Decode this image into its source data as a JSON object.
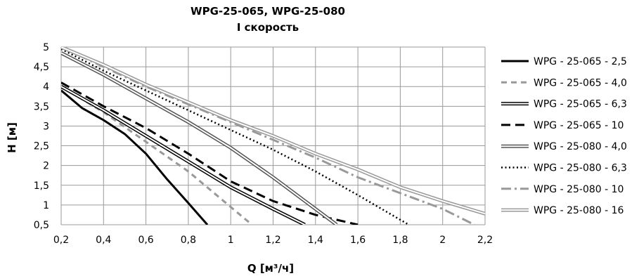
{
  "chart_data": {
    "type": "line",
    "title": "WPG-25-065, WPG-25-080",
    "subtitle": "I скорость",
    "xlabel": "Q [м³/ч]",
    "ylabel": "H [м]",
    "xlim": [
      0.2,
      2.2
    ],
    "ylim": [
      0.5,
      5
    ],
    "x_ticks": [
      "0,2",
      "0,4",
      "0,6",
      "0,8",
      "1",
      "1,2",
      "1,4",
      "1,6",
      "1,8",
      "2",
      "2,2"
    ],
    "y_ticks": [
      "0,5",
      "1",
      "1,5",
      "2",
      "2,5",
      "3",
      "3,5",
      "4",
      "4,5",
      "5"
    ],
    "grid": true,
    "legend_position": "right",
    "series": [
      {
        "name": "WPG - 25-065 - 2,5",
        "style": "solid",
        "color": "#000000",
        "points": [
          [
            0.2,
            3.9
          ],
          [
            0.3,
            3.45
          ],
          [
            0.4,
            3.15
          ],
          [
            0.5,
            2.8
          ],
          [
            0.6,
            2.3
          ],
          [
            0.7,
            1.65
          ],
          [
            0.8,
            1.05
          ],
          [
            0.89,
            0.5
          ]
        ]
      },
      {
        "name": "WPG - 25-065 - 4,0",
        "style": "dashed",
        "color": "#999999",
        "points": [
          [
            0.2,
            4.0
          ],
          [
            0.4,
            3.35
          ],
          [
            0.6,
            2.6
          ],
          [
            0.8,
            1.85
          ],
          [
            0.9,
            1.4
          ],
          [
            1.0,
            0.95
          ],
          [
            1.1,
            0.5
          ]
        ]
      },
      {
        "name": "WPG - 25-065 - 6,3",
        "style": "double",
        "color": "#000000",
        "points": [
          [
            0.2,
            4.0
          ],
          [
            0.4,
            3.4
          ],
          [
            0.6,
            2.75
          ],
          [
            0.8,
            2.1
          ],
          [
            1.0,
            1.45
          ],
          [
            1.2,
            0.9
          ],
          [
            1.35,
            0.5
          ]
        ]
      },
      {
        "name": "WPG - 25-065 - 10",
        "style": "longdash",
        "color": "#000000",
        "points": [
          [
            0.2,
            4.1
          ],
          [
            0.4,
            3.5
          ],
          [
            0.6,
            2.95
          ],
          [
            0.8,
            2.3
          ],
          [
            1.0,
            1.6
          ],
          [
            1.2,
            1.1
          ],
          [
            1.4,
            0.75
          ],
          [
            1.6,
            0.5
          ]
        ]
      },
      {
        "name": "WPG - 25-080 - 4,0",
        "style": "double",
        "color": "#555555",
        "points": [
          [
            0.2,
            4.85
          ],
          [
            0.4,
            4.3
          ],
          [
            0.6,
            3.7
          ],
          [
            0.8,
            3.1
          ],
          [
            1.0,
            2.45
          ],
          [
            1.2,
            1.7
          ],
          [
            1.4,
            0.9
          ],
          [
            1.5,
            0.5
          ]
        ]
      },
      {
        "name": "WPG - 25-080 - 6,3",
        "style": "dotted",
        "color": "#000000",
        "points": [
          [
            0.2,
            4.95
          ],
          [
            0.4,
            4.4
          ],
          [
            0.6,
            3.9
          ],
          [
            0.8,
            3.4
          ],
          [
            1.0,
            2.9
          ],
          [
            1.2,
            2.4
          ],
          [
            1.4,
            1.85
          ],
          [
            1.6,
            1.25
          ],
          [
            1.84,
            0.5
          ]
        ]
      },
      {
        "name": "WPG - 25-080 - 10",
        "style": "dashdot",
        "color": "#999999",
        "points": [
          [
            0.2,
            5.0
          ],
          [
            0.4,
            4.5
          ],
          [
            0.6,
            4.0
          ],
          [
            0.8,
            3.55
          ],
          [
            1.0,
            3.1
          ],
          [
            1.2,
            2.65
          ],
          [
            1.4,
            2.2
          ],
          [
            1.6,
            1.7
          ],
          [
            1.8,
            1.3
          ],
          [
            2.0,
            0.9
          ],
          [
            2.15,
            0.5
          ]
        ]
      },
      {
        "name": "WPG - 25-080 - 16",
        "style": "double",
        "color": "#999999",
        "points": [
          [
            0.2,
            5.0
          ],
          [
            0.4,
            4.55
          ],
          [
            0.6,
            4.05
          ],
          [
            0.8,
            3.6
          ],
          [
            1.0,
            3.15
          ],
          [
            1.2,
            2.75
          ],
          [
            1.4,
            2.3
          ],
          [
            1.6,
            1.9
          ],
          [
            1.8,
            1.45
          ],
          [
            2.0,
            1.1
          ],
          [
            2.2,
            0.78
          ]
        ]
      }
    ]
  }
}
